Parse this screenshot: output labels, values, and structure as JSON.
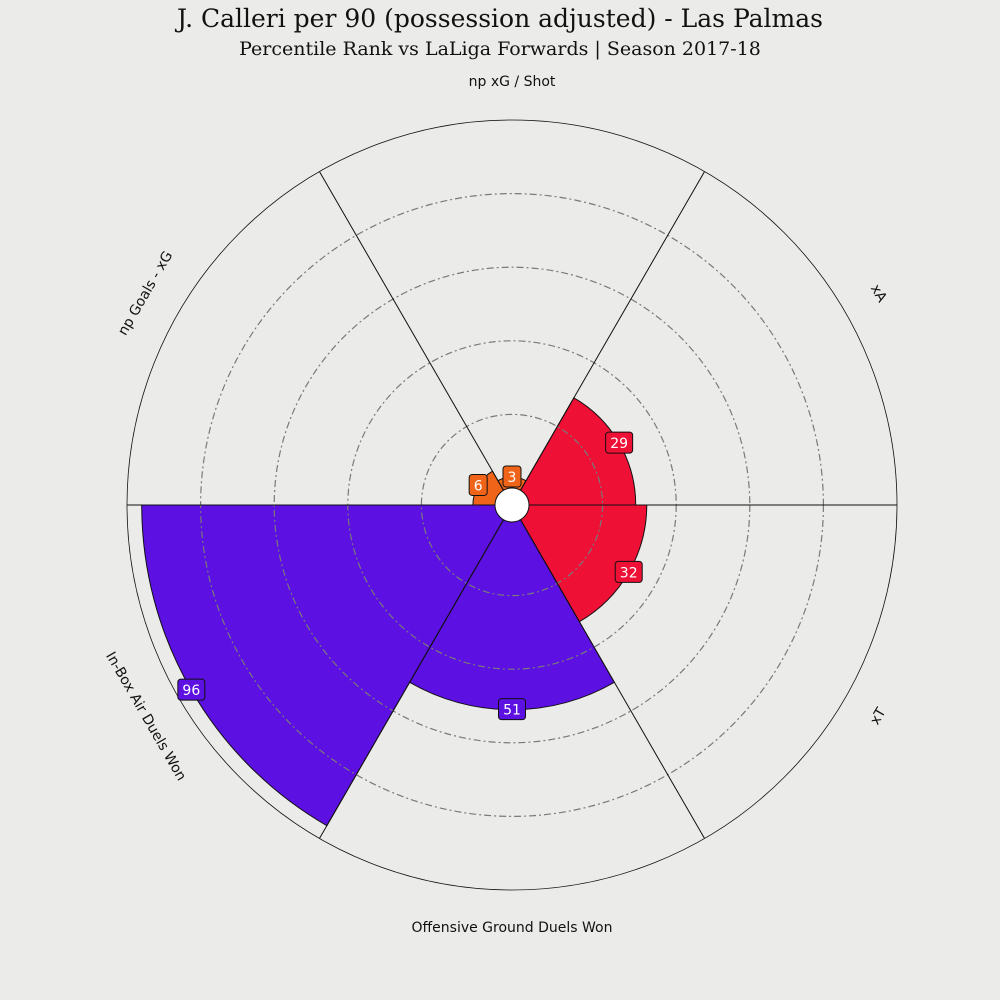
{
  "header": {
    "title": "J. Calleri per 90 (possession adjusted) - Las Palmas",
    "subtitle": "Percentile Rank vs LaLiga Forwards | Season 2017-18"
  },
  "colors": {
    "background": "#ebebe9",
    "attacking": "#f06419",
    "creation": "#ef1036",
    "duels": "#5c10e2",
    "grid": "#7a7a7a",
    "label_text": "#ffffff"
  },
  "chart_data": {
    "type": "polar-bar",
    "range": [
      0,
      100
    ],
    "grid": true,
    "params": [
      {
        "name": "np Goals - xG",
        "value": 6,
        "group": "attacking"
      },
      {
        "name": "np xG / Shot",
        "value": 3,
        "group": "attacking"
      },
      {
        "name": "xA",
        "value": 29,
        "group": "creation"
      },
      {
        "name": "xT",
        "value": 32,
        "group": "creation"
      },
      {
        "name": "Offensive Ground Duels Won",
        "value": 51,
        "group": "duels"
      },
      {
        "name": "In-Box Air Duels Won",
        "value": 96,
        "group": "duels"
      }
    ]
  }
}
